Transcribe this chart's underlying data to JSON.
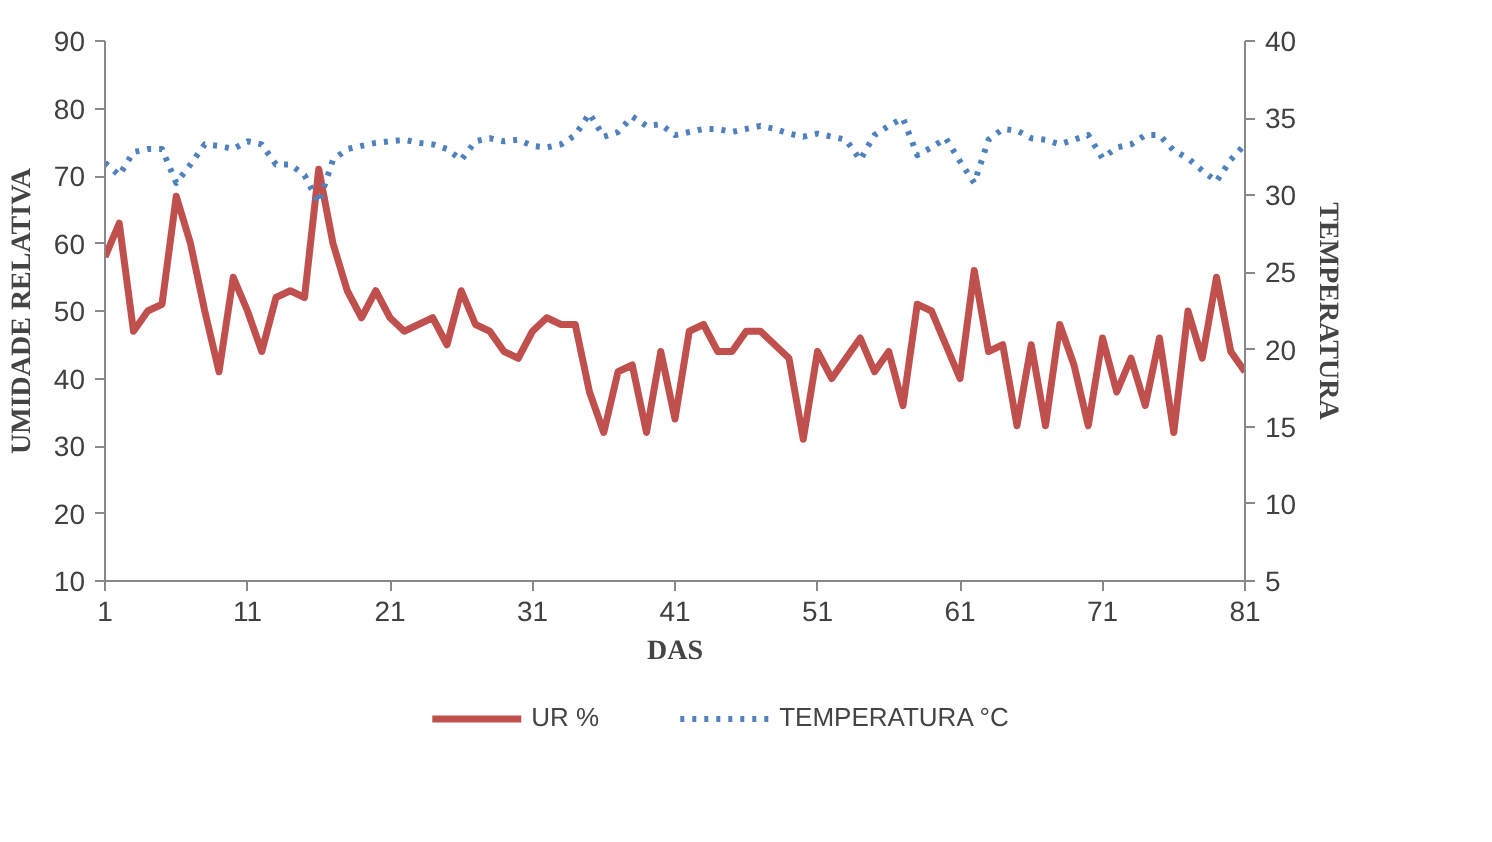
{
  "chart_data": {
    "type": "line",
    "xlabel": "DAS",
    "ylabel": "UMIDADE RELATIVA",
    "y2label": "TEMPERATURA",
    "x": [
      1,
      2,
      3,
      4,
      5,
      6,
      7,
      8,
      9,
      10,
      11,
      12,
      13,
      14,
      15,
      16,
      17,
      18,
      19,
      20,
      21,
      22,
      23,
      24,
      25,
      26,
      27,
      28,
      29,
      30,
      31,
      32,
      33,
      34,
      35,
      36,
      37,
      38,
      39,
      40,
      41,
      42,
      43,
      44,
      45,
      46,
      47,
      48,
      49,
      50,
      51,
      52,
      53,
      54,
      55,
      56,
      57,
      58,
      59,
      60,
      61,
      62,
      63,
      64,
      65,
      66,
      67,
      68,
      69,
      70,
      71,
      72,
      73,
      74,
      75,
      76,
      77,
      78,
      79,
      80,
      81
    ],
    "xlim": [
      1,
      81
    ],
    "xticks": [
      1,
      11,
      21,
      31,
      41,
      51,
      61,
      71,
      81
    ],
    "ylim": [
      10,
      90
    ],
    "yticks": [
      10,
      20,
      30,
      40,
      50,
      60,
      70,
      80,
      90
    ],
    "y2lim": [
      5,
      40
    ],
    "y2ticks": [
      5,
      10,
      15,
      20,
      25,
      30,
      35,
      40
    ],
    "grid": false,
    "legend": "bottom",
    "marker": "none",
    "series": [
      {
        "name": "UR %",
        "color": "#c0504d",
        "line_style": "solid",
        "values": [
          58,
          63,
          47,
          50,
          51,
          67,
          60,
          50,
          41,
          55,
          50,
          44,
          52,
          53,
          52,
          71,
          60,
          53,
          49,
          53,
          49,
          47,
          48,
          49,
          45,
          53,
          48,
          47,
          44,
          43,
          47,
          49,
          48,
          48,
          38,
          32,
          41,
          42,
          32,
          44,
          34,
          47,
          48,
          44,
          44,
          47,
          47,
          45,
          43,
          31,
          44,
          40,
          43,
          46,
          41,
          44,
          36,
          51,
          50,
          45,
          40,
          56,
          44,
          45,
          33,
          45,
          33,
          48,
          42,
          33,
          46,
          38,
          43,
          36,
          46,
          32,
          50,
          43,
          55,
          44,
          41
        ]
      },
      {
        "name": "TEMPERATURA °C",
        "color": "#4f81bd",
        "line_style": "dotted",
        "axis": "y2",
        "values": [
          32.1,
          31.3,
          32.8,
          33,
          33,
          30.8,
          32,
          33.3,
          33.2,
          33,
          33.5,
          33.3,
          32,
          32,
          31.3,
          29.5,
          32.3,
          33,
          33.2,
          33.4,
          33.5,
          33.6,
          33.4,
          33.3,
          33,
          32.3,
          33.5,
          33.7,
          33.5,
          33.6,
          33.2,
          33.1,
          33.3,
          33.9,
          35.3,
          33.8,
          34.1,
          35.1,
          34.5,
          34.6,
          33.9,
          34.1,
          34.3,
          34.3,
          34.1,
          34.3,
          34.5,
          34.3,
          34,
          33.8,
          34,
          33.8,
          33.6,
          32.3,
          33.9,
          34.5,
          35,
          32.6,
          33.1,
          33.7,
          32.2,
          30.8,
          33.6,
          34.3,
          34.2,
          33.7,
          33.6,
          33.3,
          33.6,
          33.9,
          32.4,
          33.1,
          33.3,
          33.9,
          33.9,
          32.9,
          32.4,
          31.6,
          30.9,
          32.3,
          33.3
        ]
      }
    ]
  }
}
